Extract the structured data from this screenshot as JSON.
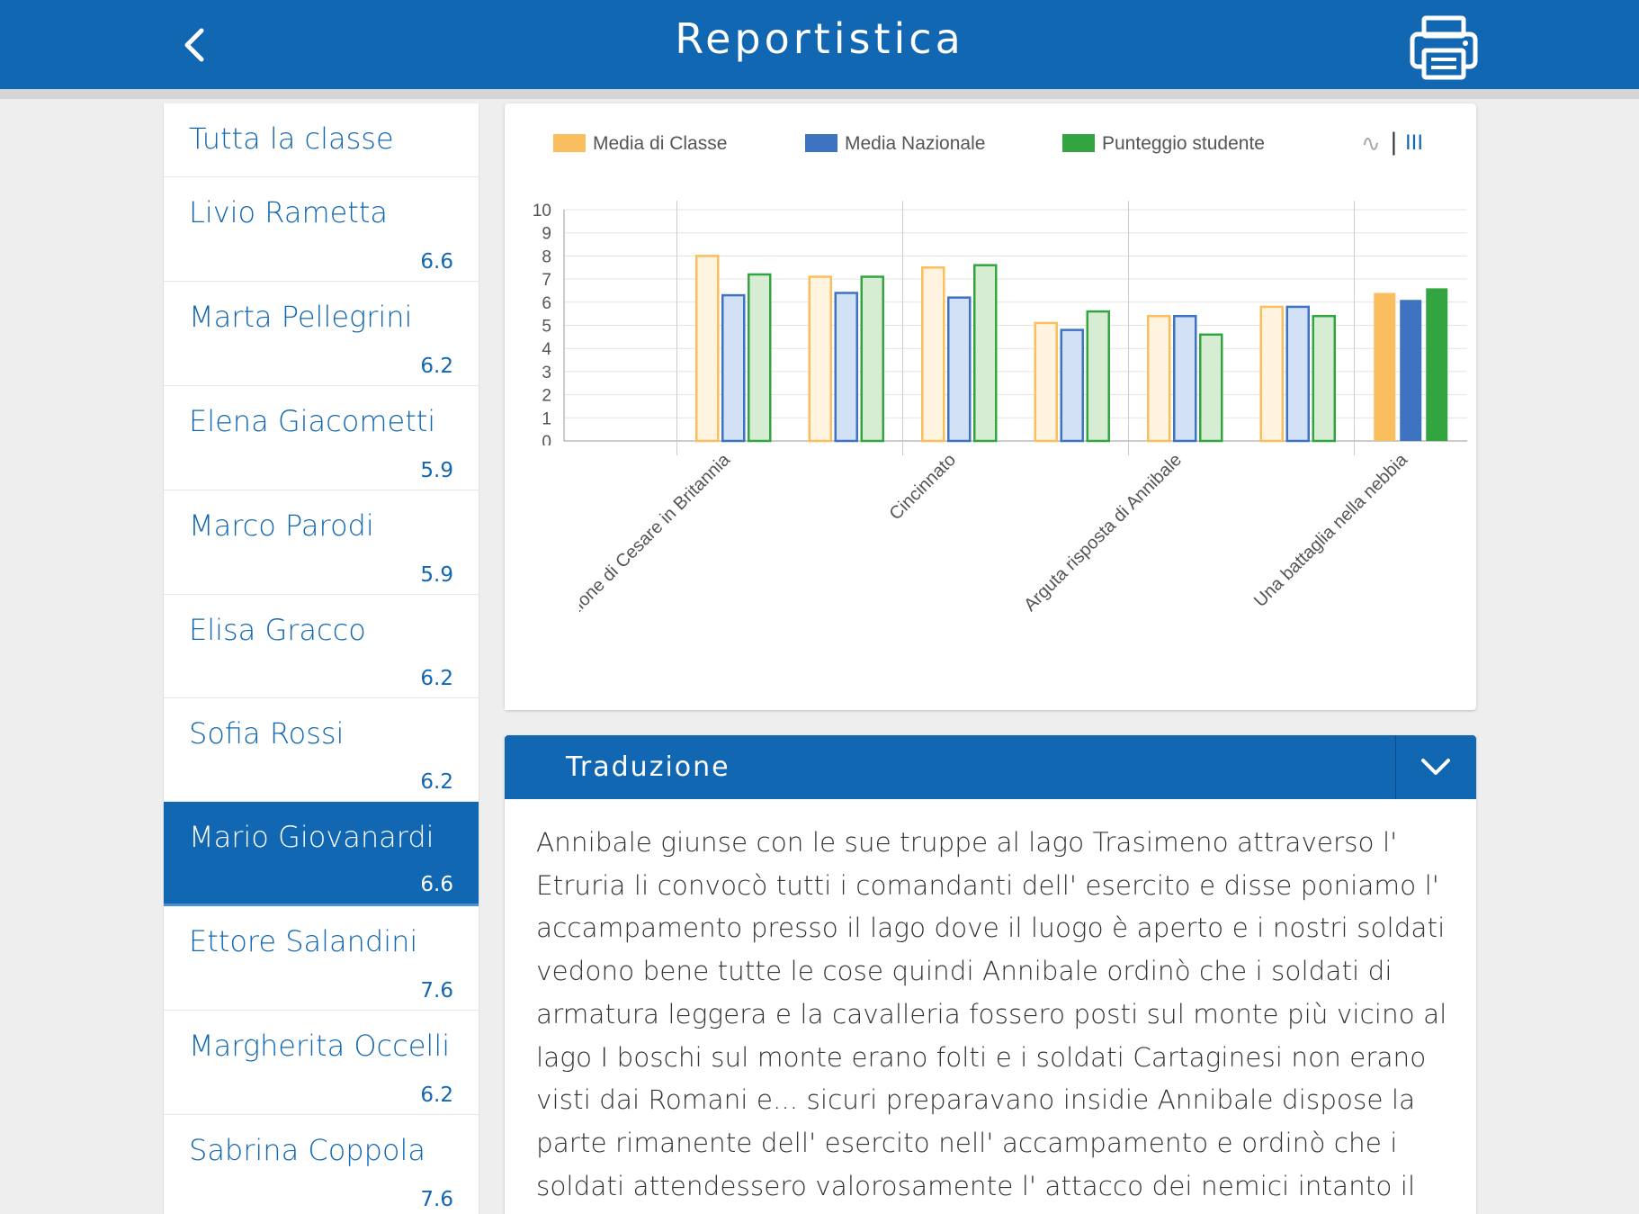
{
  "header": {
    "title": "Reportistica",
    "back_icon": "chevron-left-icon",
    "print_icon": "printer-icon"
  },
  "sidebar": {
    "all_label": "Tutta la classe",
    "students": [
      {
        "name": "Livio Rametta",
        "score": "6.6"
      },
      {
        "name": "Marta Pellegrini",
        "score": "6.2"
      },
      {
        "name": "Elena Giacometti",
        "score": "5.9"
      },
      {
        "name": "Marco Parodi",
        "score": "5.9"
      },
      {
        "name": "Elisa Gracco",
        "score": "6.2"
      },
      {
        "name": "Sofia Rossi",
        "score": "6.2"
      },
      {
        "name": "Mario Giovanardi",
        "score": "6.6"
      },
      {
        "name": "Ettore Salandini",
        "score": "7.6"
      },
      {
        "name": "Margherita Occelli",
        "score": "6.2"
      },
      {
        "name": "Sabrina Coppola",
        "score": "7.6"
      }
    ],
    "active_index": 6
  },
  "chart_data": {
    "type": "bar",
    "legend": [
      {
        "label": "Media di Classe",
        "color": "#fbbe5e"
      },
      {
        "label": "Media Nazionale",
        "color": "#3d73c1"
      },
      {
        "label": "Punteggio studente",
        "color": "#32a540"
      }
    ],
    "toggles": {
      "line_icon": "∿",
      "separator": "|",
      "bar_icon": "III"
    },
    "categories": [
      "",
      "Prima spedizione di Cesare in Britannia",
      "",
      "Cincinnato",
      "",
      "Arguta risposta di Annibale",
      "",
      "Una battaglia nella nebbia"
    ],
    "series": [
      {
        "name": "Media di Classe",
        "values": [
          null,
          8.0,
          7.1,
          7.5,
          5.1,
          5.4,
          5.8,
          6.4
        ]
      },
      {
        "name": "Media Nazionale",
        "values": [
          null,
          6.3,
          6.4,
          6.2,
          4.8,
          5.4,
          5.8,
          6.1
        ]
      },
      {
        "name": "Punteggio studente",
        "values": [
          null,
          7.2,
          7.1,
          7.6,
          5.6,
          4.6,
          5.4,
          6.6
        ]
      }
    ],
    "highlight_last": true,
    "ylim": [
      0,
      10
    ],
    "yticks": [
      "0",
      "1",
      "2",
      "3",
      "4",
      "5",
      "6",
      "7",
      "8",
      "9",
      "10"
    ],
    "grid": true
  },
  "traduzione": {
    "title": "Traduzione",
    "toggle_icon": "chevron-down-icon",
    "lines": [
      "Annibale giunse con le sue truppe al lago Trasimeno attraverso l'",
      "Etruria li convocò tutti i comandanti dell' esercito e disse poniamo l'",
      "accampamento presso il lago dove il luogo è aperto e i nostri soldati",
      "vedono bene tutte le cose quindi Annibale ordinò che i soldati di",
      "armatura leggera e la cavalleria fossero posti sul monte più vicino al",
      "lago I boschi sul monte erano folti e i soldati Cartaginesi non erano",
      "visti dai Romani e... sicuri preparavano insidie Annibale dispose la",
      "parte rimanente dell' esercito nell' accampamento e ordinò che i",
      "soldati attendessero valorosamente l' attacco dei nemici intanto il"
    ]
  }
}
